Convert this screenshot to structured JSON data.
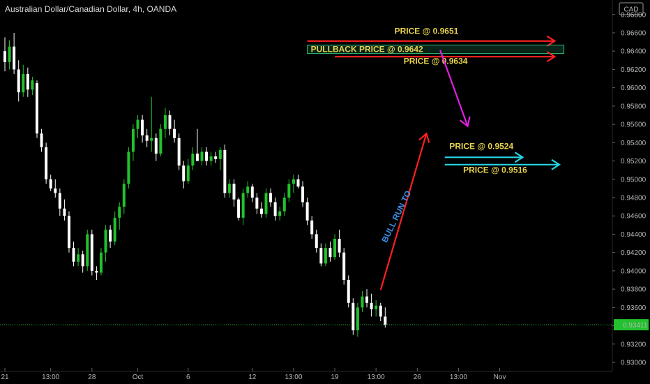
{
  "header": {
    "title": "Australian Dollar/Canadian Dollar, 4h, OANDA"
  },
  "chart_data": {
    "type": "candlestick",
    "symbol": "Australian Dollar/Canadian Dollar",
    "timeframe": "4h",
    "source": "OANDA",
    "currency_label": "CAD",
    "ylim": [
      0.929,
      0.969
    ],
    "y_ticks": [
      "0.96800",
      "0.96600",
      "0.96400",
      "0.96200",
      "0.96000",
      "0.95800",
      "0.95600",
      "0.95400",
      "0.95200",
      "0.95000",
      "0.94800",
      "0.94600",
      "0.94400",
      "0.94200",
      "0.94000",
      "0.93800",
      "0.93600",
      "0.93400",
      "0.93200",
      "0.93000"
    ],
    "x_ticks": [
      {
        "label": "21",
        "i": 0
      },
      {
        "label": "13:00",
        "i": 10
      },
      {
        "label": "28",
        "i": 19
      },
      {
        "label": "Oct",
        "i": 29
      },
      {
        "label": "6",
        "i": 40
      },
      {
        "label": "12",
        "i": 54
      },
      {
        "label": "13:00",
        "i": 63
      },
      {
        "label": "19",
        "i": 72
      },
      {
        "label": "13:00",
        "i": 81
      },
      {
        "label": "26",
        "i": 90
      },
      {
        "label": "13:00",
        "i": 99
      },
      {
        "label": "Nov",
        "i": 108
      }
    ],
    "last_price": "0.93411",
    "last_value": 0.93411,
    "grid": false,
    "candles": [
      [
        0.964,
        0.9655,
        0.9618,
        0.9628
      ],
      [
        0.9628,
        0.9652,
        0.962,
        0.9645
      ],
      [
        0.9645,
        0.966,
        0.9615,
        0.962
      ],
      [
        0.962,
        0.963,
        0.9585,
        0.9595
      ],
      [
        0.9595,
        0.9625,
        0.959,
        0.9615
      ],
      [
        0.9615,
        0.9622,
        0.959,
        0.9598
      ],
      [
        0.9598,
        0.9612,
        0.9592,
        0.9608
      ],
      [
        0.9605,
        0.9608,
        0.9545,
        0.955
      ],
      [
        0.955,
        0.9555,
        0.953,
        0.9535
      ],
      [
        0.9535,
        0.954,
        0.9495,
        0.95
      ],
      [
        0.95,
        0.9505,
        0.9487,
        0.949
      ],
      [
        0.949,
        0.95,
        0.948,
        0.9485
      ],
      [
        0.9485,
        0.949,
        0.946,
        0.9468
      ],
      [
        0.9468,
        0.9478,
        0.9455,
        0.946
      ],
      [
        0.946,
        0.9465,
        0.942,
        0.9425
      ],
      [
        0.9425,
        0.9432,
        0.9405,
        0.941
      ],
      [
        0.941,
        0.9425,
        0.9405,
        0.9418
      ],
      [
        0.9418,
        0.9422,
        0.9398,
        0.9405
      ],
      [
        0.9405,
        0.9445,
        0.94,
        0.944
      ],
      [
        0.944,
        0.9445,
        0.9395,
        0.94
      ],
      [
        0.94,
        0.9405,
        0.939,
        0.9398
      ],
      [
        0.9398,
        0.9425,
        0.9395,
        0.942
      ],
      [
        0.942,
        0.945,
        0.941,
        0.9445
      ],
      [
        0.9445,
        0.945,
        0.9425,
        0.9432
      ],
      [
        0.9432,
        0.9465,
        0.9428,
        0.9458
      ],
      [
        0.9458,
        0.9475,
        0.9445,
        0.947
      ],
      [
        0.947,
        0.95,
        0.9462,
        0.9495
      ],
      [
        0.9495,
        0.9535,
        0.949,
        0.953
      ],
      [
        0.953,
        0.956,
        0.952,
        0.9555
      ],
      [
        0.9555,
        0.957,
        0.9545,
        0.9565
      ],
      [
        0.9565,
        0.957,
        0.954,
        0.9548
      ],
      [
        0.9548,
        0.9555,
        0.9535,
        0.9542
      ],
      [
        0.9542,
        0.959,
        0.953,
        0.9545
      ],
      [
        0.9545,
        0.955,
        0.952,
        0.9528
      ],
      [
        0.9528,
        0.956,
        0.9525,
        0.9555
      ],
      [
        0.9555,
        0.9578,
        0.9545,
        0.957
      ],
      [
        0.957,
        0.9575,
        0.9548,
        0.9555
      ],
      [
        0.9555,
        0.9565,
        0.954,
        0.9545
      ],
      [
        0.9545,
        0.955,
        0.951,
        0.9515
      ],
      [
        0.9515,
        0.952,
        0.949,
        0.9498
      ],
      [
        0.9498,
        0.9522,
        0.9495,
        0.9515
      ],
      [
        0.9515,
        0.9535,
        0.951,
        0.9528
      ],
      [
        0.9528,
        0.9555,
        0.952,
        0.952
      ],
      [
        0.952,
        0.9535,
        0.9515,
        0.953
      ],
      [
        0.953,
        0.9535,
        0.9515,
        0.952
      ],
      [
        0.952,
        0.953,
        0.9515,
        0.9525
      ],
      [
        0.9525,
        0.953,
        0.9518,
        0.9522
      ],
      [
        0.9522,
        0.9535,
        0.951,
        0.9532
      ],
      [
        0.9532,
        0.9538,
        0.948,
        0.9485
      ],
      [
        0.9485,
        0.95,
        0.948,
        0.9495
      ],
      [
        0.9495,
        0.95,
        0.947,
        0.9478
      ],
      [
        0.9478,
        0.948,
        0.9455,
        0.9458
      ],
      [
        0.9458,
        0.949,
        0.945,
        0.9485
      ],
      [
        0.9485,
        0.9498,
        0.948,
        0.9492
      ],
      [
        0.9492,
        0.9495,
        0.9475,
        0.948
      ],
      [
        0.948,
        0.9485,
        0.9462,
        0.9468
      ],
      [
        0.9468,
        0.9475,
        0.9458,
        0.9462
      ],
      [
        0.9462,
        0.949,
        0.9458,
        0.9485
      ],
      [
        0.9485,
        0.949,
        0.947,
        0.9475
      ],
      [
        0.9475,
        0.948,
        0.9455,
        0.946
      ],
      [
        0.946,
        0.947,
        0.9455,
        0.9465
      ],
      [
        0.9465,
        0.9485,
        0.946,
        0.948
      ],
      [
        0.948,
        0.95,
        0.9475,
        0.9495
      ],
      [
        0.9495,
        0.9505,
        0.9485,
        0.95
      ],
      [
        0.95,
        0.9505,
        0.949,
        0.9492
      ],
      [
        0.9492,
        0.9498,
        0.947,
        0.9475
      ],
      [
        0.9475,
        0.948,
        0.945,
        0.9455
      ],
      [
        0.9455,
        0.946,
        0.9435,
        0.944
      ],
      [
        0.944,
        0.9445,
        0.942,
        0.9425
      ],
      [
        0.9425,
        0.943,
        0.9405,
        0.9408
      ],
      [
        0.9408,
        0.943,
        0.9405,
        0.9425
      ],
      [
        0.9425,
        0.9432,
        0.941,
        0.9415
      ],
      [
        0.9415,
        0.944,
        0.9412,
        0.9435
      ],
      [
        0.9435,
        0.9445,
        0.9415,
        0.942
      ],
      [
        0.942,
        0.9425,
        0.9385,
        0.939
      ],
      [
        0.939,
        0.9395,
        0.936,
        0.9365
      ],
      [
        0.9365,
        0.937,
        0.933,
        0.9335
      ],
      [
        0.9335,
        0.9365,
        0.9328,
        0.936
      ],
      [
        0.936,
        0.9378,
        0.9355,
        0.9372
      ],
      [
        0.9372,
        0.938,
        0.936,
        0.9365
      ],
      [
        0.9365,
        0.9375,
        0.935,
        0.9358
      ],
      [
        0.9358,
        0.9368,
        0.935,
        0.9362
      ],
      [
        0.9362,
        0.9365,
        0.9345,
        0.935
      ],
      [
        0.935,
        0.936,
        0.9338,
        0.9341
      ]
    ],
    "annotations": [
      {
        "type": "arrow",
        "color": "#ff2020",
        "from": [
          82,
          0.9379
        ],
        "to": [
          92,
          0.955
        ]
      },
      {
        "type": "text",
        "text": "BULL RUN TO",
        "color": "#3a8ee6",
        "at": [
          86,
          0.9458
        ],
        "rotate": -64
      },
      {
        "type": "hline-arrow",
        "color": "#ff2020",
        "x1": 66,
        "x2": 120,
        "y": 0.9651,
        "label": "PRICE @ 0.9651",
        "label_at": [
          92,
          0.9659
        ]
      },
      {
        "type": "box",
        "color": "#2ec27e",
        "x1": 66,
        "x2": 122,
        "y": 0.9642,
        "label": "PULLBACK PRICE @ 0.9642"
      },
      {
        "type": "hline-arrow",
        "color": "#ff2020",
        "x1": 72,
        "x2": 120,
        "y": 0.9634,
        "label": "PRICE @ 0.9634",
        "label_at": [
          94,
          0.9626
        ]
      },
      {
        "type": "arrow",
        "color": "#e020e0",
        "from": [
          95,
          0.9641
        ],
        "to": [
          101,
          0.9558
        ]
      },
      {
        "type": "hline-arrow",
        "color": "#25d4e4",
        "x1": 96,
        "x2": 113,
        "y": 0.9524,
        "label": "PRICE @ 0.9524",
        "label_at": [
          104,
          0.9533
        ]
      },
      {
        "type": "hline-arrow",
        "color": "#25d4e4",
        "x1": 96,
        "x2": 121,
        "y": 0.9516,
        "label": "PRICE @ 0.9516",
        "label_at": [
          107,
          0.9507
        ]
      }
    ]
  }
}
